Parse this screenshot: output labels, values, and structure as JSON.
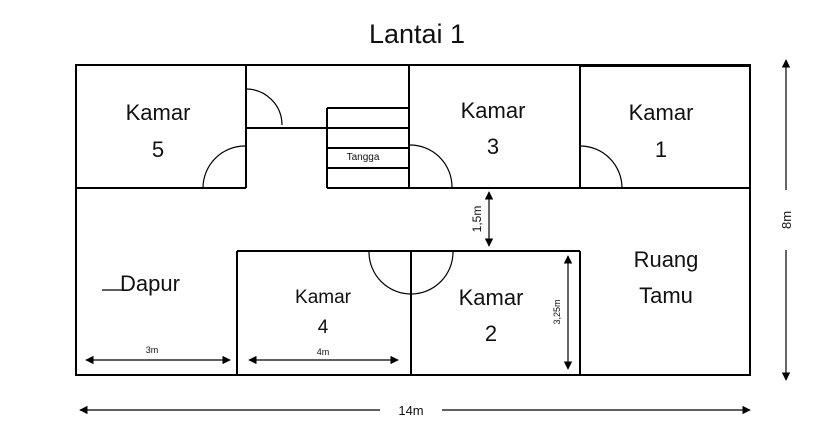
{
  "title": "Lantai 1",
  "rooms": {
    "kamar5": {
      "name": "Kamar",
      "number": "5"
    },
    "kamar3": {
      "name": "Kamar",
      "number": "3"
    },
    "kamar1": {
      "name": "Kamar",
      "number": "1"
    },
    "kamar4": {
      "name": "Kamar",
      "number": "4"
    },
    "kamar2": {
      "name": "Kamar",
      "number": "2"
    },
    "dapur": {
      "name": "Dapur"
    },
    "ruang_tamu": {
      "line1": "Ruang",
      "line2": "Tamu"
    },
    "tangga": {
      "name": "Tangga"
    }
  },
  "dimensions": {
    "total_width": "14m",
    "total_height": "8m",
    "corridor": "1,5m",
    "kamar2_depth": "3,25m",
    "dapur_width": "3m",
    "kamar4_width": "4m"
  }
}
